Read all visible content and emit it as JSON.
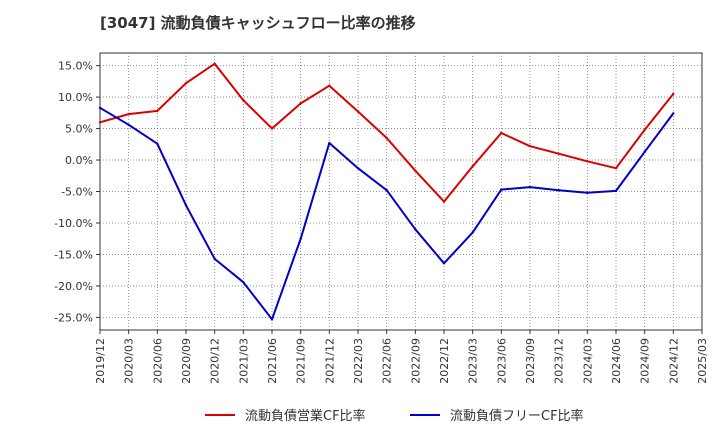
{
  "chart_data": {
    "type": "line",
    "title": "[3047]  流動負債キャッシュフロー比率の推移",
    "xlabel": "",
    "ylabel": "",
    "ylim": [
      -27,
      17
    ],
    "y_ticks": [
      15,
      10,
      5,
      0,
      -5,
      -10,
      -15,
      -20,
      -25
    ],
    "y_tick_labels": [
      "15.0%",
      "10.0%",
      "5.0%",
      "0.0%",
      "-5.0%",
      "-10.0%",
      "-15.0%",
      "-20.0%",
      "-25.0%"
    ],
    "x_tick_labels": [
      "2019/12",
      "2020/03",
      "2020/06",
      "2020/09",
      "2020/12",
      "2021/03",
      "2021/06",
      "2021/09",
      "2021/12",
      "2022/03",
      "2022/06",
      "2022/09",
      "2022/12",
      "2023/03",
      "2023/06",
      "2023/09",
      "2023/12",
      "2024/03",
      "2024/06",
      "2024/09",
      "2024/12",
      "2025/03"
    ],
    "grid": true,
    "legend_position": "bottom",
    "series": [
      {
        "name": "流動負債営業CF比率",
        "color": "#dd0000",
        "values": [
          6.0,
          7.3,
          7.8,
          12.2,
          15.3,
          9.5,
          5.0,
          9.0,
          11.8,
          7.7,
          3.5,
          -1.7,
          -6.6,
          -1.0,
          4.3,
          2.2,
          1.0,
          -0.2,
          -1.3,
          4.8,
          10.5,
          null
        ]
      },
      {
        "name": "流動負債フリーCF比率",
        "color": "#0000cc",
        "values": [
          8.3,
          5.6,
          2.6,
          -7.2,
          -15.7,
          -19.4,
          -25.3,
          -12.5,
          2.7,
          -1.3,
          -4.8,
          -11.0,
          -16.4,
          -11.5,
          -4.7,
          -4.3,
          -4.8,
          -5.2,
          -4.9,
          1.3,
          7.4,
          null
        ]
      }
    ]
  }
}
